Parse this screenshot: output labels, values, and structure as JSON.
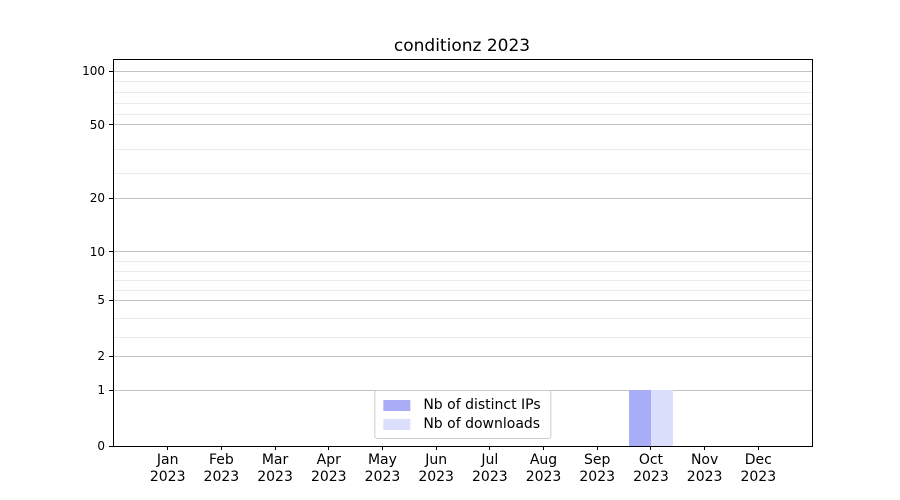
{
  "title": "conditionz 2023",
  "chart_data": {
    "type": "bar",
    "title": "conditionz 2023",
    "categories": [
      "Jan",
      "Feb",
      "Mar",
      "Apr",
      "May",
      "Jun",
      "Jul",
      "Aug",
      "Sep",
      "Oct",
      "Nov",
      "Dec"
    ],
    "category_year": "2023",
    "series": [
      {
        "name": "Nb of distinct IPs",
        "color": "#a9adf8",
        "values": [
          0,
          0,
          0,
          0,
          0,
          0,
          0,
          0,
          0,
          1,
          0,
          0
        ]
      },
      {
        "name": "Nb of downloads",
        "color": "#dcdffb",
        "values": [
          0,
          0,
          0,
          0,
          0,
          0,
          0,
          0,
          0,
          1,
          0,
          0
        ]
      }
    ],
    "yticks": [
      0,
      1,
      2,
      5,
      10,
      20,
      50,
      100
    ],
    "y_minor_gridlines": [
      3,
      4,
      6,
      7,
      8,
      9,
      30,
      40,
      60,
      70,
      80,
      90
    ],
    "ylim": [
      0,
      110
    ],
    "xlabel": "",
    "ylabel": "",
    "grid": "horizontal, major and minor",
    "legend_position": "lower center",
    "colors": {
      "major_grid": "#c3c3c3",
      "minor_grid": "#ebebeb",
      "spine": "#000000",
      "background": "#ffffff"
    }
  }
}
